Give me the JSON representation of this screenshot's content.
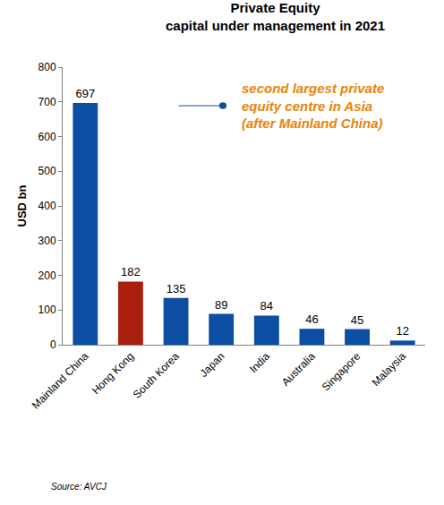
{
  "chart_data": {
    "type": "bar",
    "title": "Private Equity\ncapital under management in 2021",
    "y_label": "USD bn",
    "categories": [
      "Mainland China",
      "Hong Kong",
      "South Korea",
      "Japan",
      "India",
      "Australia",
      "Singapore",
      "Malaysia"
    ],
    "values": [
      697,
      182,
      135,
      89,
      84,
      46,
      45,
      12
    ],
    "colors": [
      "#0b4ea2",
      "#a8200d",
      "#0b4ea2",
      "#0b4ea2",
      "#0b4ea2",
      "#0b4ea2",
      "#0b4ea2",
      "#0b4ea2"
    ],
    "ylim": [
      0,
      800
    ],
    "yticks": [
      0,
      100,
      200,
      300,
      400,
      500,
      600,
      700,
      800
    ],
    "grid": false,
    "data_labels": true,
    "annotation": "second largest private\nequity centre in Asia\n(after Mainland China)",
    "source": "Source: AVCJ"
  }
}
